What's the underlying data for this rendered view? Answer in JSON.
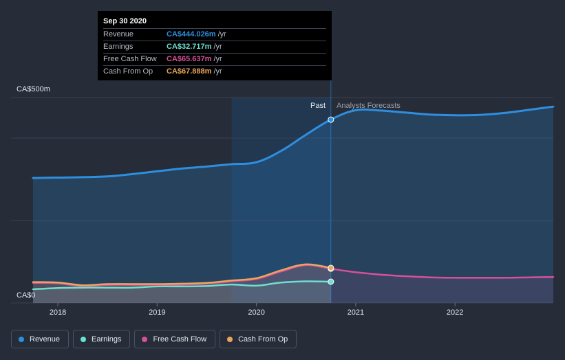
{
  "tooltip": {
    "date": "Sep 30 2020",
    "rows": [
      {
        "label": "Revenue",
        "value": "CA$444.026m",
        "unit": "/yr",
        "color": "#2e8fe0"
      },
      {
        "label": "Earnings",
        "value": "CA$32.717m",
        "unit": "/yr",
        "color": "#6ee0d0"
      },
      {
        "label": "Free Cash Flow",
        "value": "CA$65.637m",
        "unit": "/yr",
        "color": "#d9509a"
      },
      {
        "label": "Cash From Op",
        "value": "CA$67.888m",
        "unit": "/yr",
        "color": "#e8a75e"
      }
    ]
  },
  "legend": [
    {
      "label": "Revenue",
      "color": "#2e8fe0"
    },
    {
      "label": "Earnings",
      "color": "#6ee0d0"
    },
    {
      "label": "Free Cash Flow",
      "color": "#d9509a"
    },
    {
      "label": "Cash From Op",
      "color": "#e8a75e"
    }
  ],
  "chart_data": {
    "type": "line",
    "ylabel_top": "CA$500m",
    "ylabel_bottom": "CA$0",
    "ylim": [
      0,
      500
    ],
    "xlim": [
      2017.75,
      2022.99
    ],
    "past_label": "Past",
    "forecast_label": "Analysts Forecasts",
    "past_end": 2020.75,
    "highlight_start": 2019.75,
    "x_ticks": [
      {
        "value": 2018,
        "label": "2018"
      },
      {
        "value": 2019,
        "label": "2019"
      },
      {
        "value": 2020,
        "label": "2020"
      },
      {
        "value": 2021,
        "label": "2021"
      },
      {
        "value": 2022,
        "label": "2022"
      }
    ],
    "grid": true,
    "series": [
      {
        "name": "Revenue",
        "color": "#2e8fe0",
        "fill": true,
        "x": [
          2017.75,
          2018.0,
          2018.25,
          2018.5,
          2018.75,
          2019.0,
          2019.25,
          2019.5,
          2019.75,
          2020.0,
          2020.25,
          2020.5,
          2020.75,
          2021.0,
          2021.25,
          2021.5,
          2021.75,
          2022.0,
          2022.25,
          2022.5,
          2022.75,
          2022.99
        ],
        "values": [
          296,
          297,
          298,
          300,
          306,
          313,
          320,
          325,
          331,
          336,
          365,
          406,
          444,
          468,
          467,
          462,
          457,
          455,
          456,
          461,
          469,
          477
        ]
      },
      {
        "name": "Earnings",
        "color": "#6ee0d0",
        "x": [
          2017.75,
          2018.0,
          2018.25,
          2018.5,
          2018.75,
          2019.0,
          2019.25,
          2019.5,
          2019.75,
          2020.0,
          2020.25,
          2020.5,
          2020.75
        ],
        "values": [
          14,
          17,
          18,
          18,
          18,
          21,
          21,
          22,
          26,
          23,
          31,
          34,
          33
        ]
      },
      {
        "name": "Free Cash Flow",
        "color": "#d9509a",
        "x": [
          2017.75,
          2018.0,
          2018.25,
          2018.5,
          2018.75,
          2019.0,
          2019.25,
          2019.5,
          2019.75,
          2020.0,
          2020.25,
          2020.5,
          2020.75,
          2021.0,
          2021.25,
          2021.5,
          2021.75,
          2022.0,
          2022.25,
          2022.5,
          2022.75,
          2022.99
        ],
        "values": [
          30,
          29,
          22,
          25,
          25,
          25,
          26,
          28,
          34,
          40,
          59,
          75,
          66,
          57,
          51,
          47,
          44,
          43,
          43,
          43,
          44,
          45
        ]
      },
      {
        "name": "Cash From Op",
        "color": "#e8a75e",
        "x": [
          2017.75,
          2018.0,
          2018.25,
          2018.5,
          2018.75,
          2019.0,
          2019.25,
          2019.5,
          2019.75,
          2020.0,
          2020.25,
          2020.5,
          2020.75
        ],
        "values": [
          32,
          31,
          24,
          27,
          27,
          27,
          28,
          30,
          36,
          42,
          62,
          77,
          68
        ]
      }
    ]
  }
}
